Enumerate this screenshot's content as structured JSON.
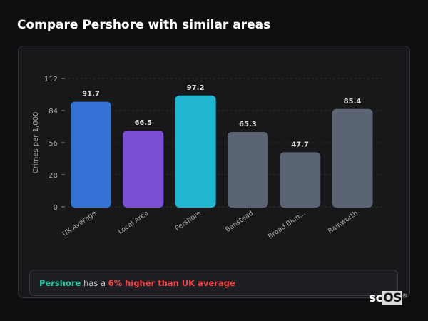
{
  "title": "Compare Pershore with similar areas",
  "summary": {
    "place": "Pershore",
    "middle": " has a ",
    "highlight": "6% higher than UK average"
  },
  "logo": {
    "left": "sc",
    "right": "OS"
  },
  "chart_data": {
    "type": "bar",
    "title": "",
    "xlabel": "",
    "ylabel": "Crimes per 1,000",
    "ylim": [
      0,
      112
    ],
    "yticks": [
      0,
      28,
      56,
      84,
      112
    ],
    "grid": true,
    "categories": [
      "UK Average",
      "Local Area",
      "Pershore",
      "Banstead",
      "Broad Blun...",
      "Rainworth"
    ],
    "values": [
      91.7,
      66.5,
      97.2,
      65.3,
      47.7,
      85.4
    ],
    "value_labels": [
      "91.7",
      "66.5",
      "97.2",
      "65.3",
      "47.7",
      "85.4"
    ],
    "colors": [
      "#3572d6",
      "#7b4fd4",
      "#20b6cf",
      "#5a6474",
      "#5a6474",
      "#5a6474"
    ]
  }
}
